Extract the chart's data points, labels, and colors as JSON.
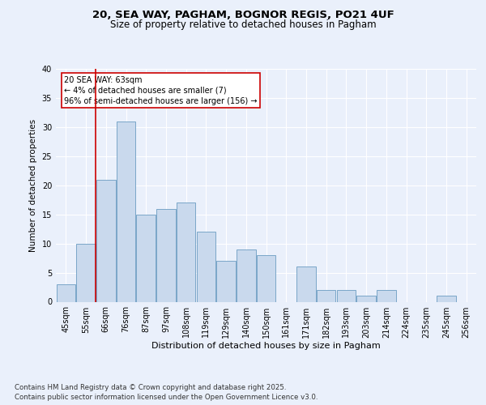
{
  "title1": "20, SEA WAY, PAGHAM, BOGNOR REGIS, PO21 4UF",
  "title2": "Size of property relative to detached houses in Pagham",
  "xlabel": "Distribution of detached houses by size in Pagham",
  "ylabel": "Number of detached properties",
  "categories": [
    "45sqm",
    "55sqm",
    "66sqm",
    "76sqm",
    "87sqm",
    "97sqm",
    "108sqm",
    "119sqm",
    "129sqm",
    "140sqm",
    "150sqm",
    "161sqm",
    "171sqm",
    "182sqm",
    "193sqm",
    "203sqm",
    "214sqm",
    "224sqm",
    "235sqm",
    "245sqm",
    "256sqm"
  ],
  "values": [
    3,
    10,
    21,
    31,
    15,
    16,
    17,
    12,
    7,
    9,
    8,
    0,
    6,
    2,
    2,
    1,
    2,
    0,
    0,
    1,
    0
  ],
  "bar_color": "#c9d9ed",
  "bar_edge_color": "#7aa6c8",
  "annotation_text": "20 SEA WAY: 63sqm\n← 4% of detached houses are smaller (7)\n96% of semi-detached houses are larger (156) →",
  "vline_x_idx": 1.5,
  "ylim": [
    0,
    40
  ],
  "yticks": [
    0,
    5,
    10,
    15,
    20,
    25,
    30,
    35,
    40
  ],
  "bg_color": "#eaf0fb",
  "plot_bg_color": "#eaf0fb",
  "footer": "Contains HM Land Registry data © Crown copyright and database right 2025.\nContains public sector information licensed under the Open Government Licence v3.0.",
  "annotation_box_color": "#ffffff",
  "annotation_box_edge": "#cc0000",
  "vline_color": "#cc0000",
  "grid_color": "#ffffff"
}
